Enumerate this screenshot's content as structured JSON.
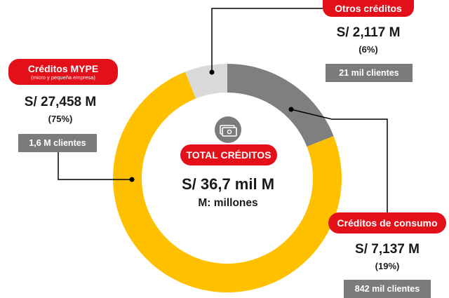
{
  "chart_data": {
    "type": "pie",
    "center": {
      "label": "TOTAL CRÉDITOS",
      "total": "S/ 36,7 mil M",
      "unit_note": "M: millones",
      "icon": "money-bill-icon"
    },
    "slices": [
      {
        "key": "mype",
        "label": "Créditos MYPE",
        "sublabel": "(micro y pequeña empresa)",
        "amount": "S/ 27,458 M",
        "percent_label": "(75%)",
        "clients": "1,6 M clientes",
        "value": 75,
        "color": "#ffc000"
      },
      {
        "key": "otros",
        "label": "Otros créditos",
        "amount": "S/ 2,117 M",
        "percent_label": "(6%)",
        "clients": "21 mil clientes",
        "value": 6,
        "color": "#d9d9d9"
      },
      {
        "key": "consumo",
        "label": "Créditos de consumo",
        "amount": "S/ 7,137 M",
        "percent_label": "(19%)",
        "clients": "842 mil clientes",
        "value": 19,
        "color": "#7f7f7f"
      }
    ],
    "slice_order_clockwise_from_top": [
      "consumo",
      "mype",
      "otros"
    ],
    "colors": {
      "callout_red": "#e3101a",
      "clients_box": "#7b7b7b",
      "leader_line": "#000000"
    }
  }
}
